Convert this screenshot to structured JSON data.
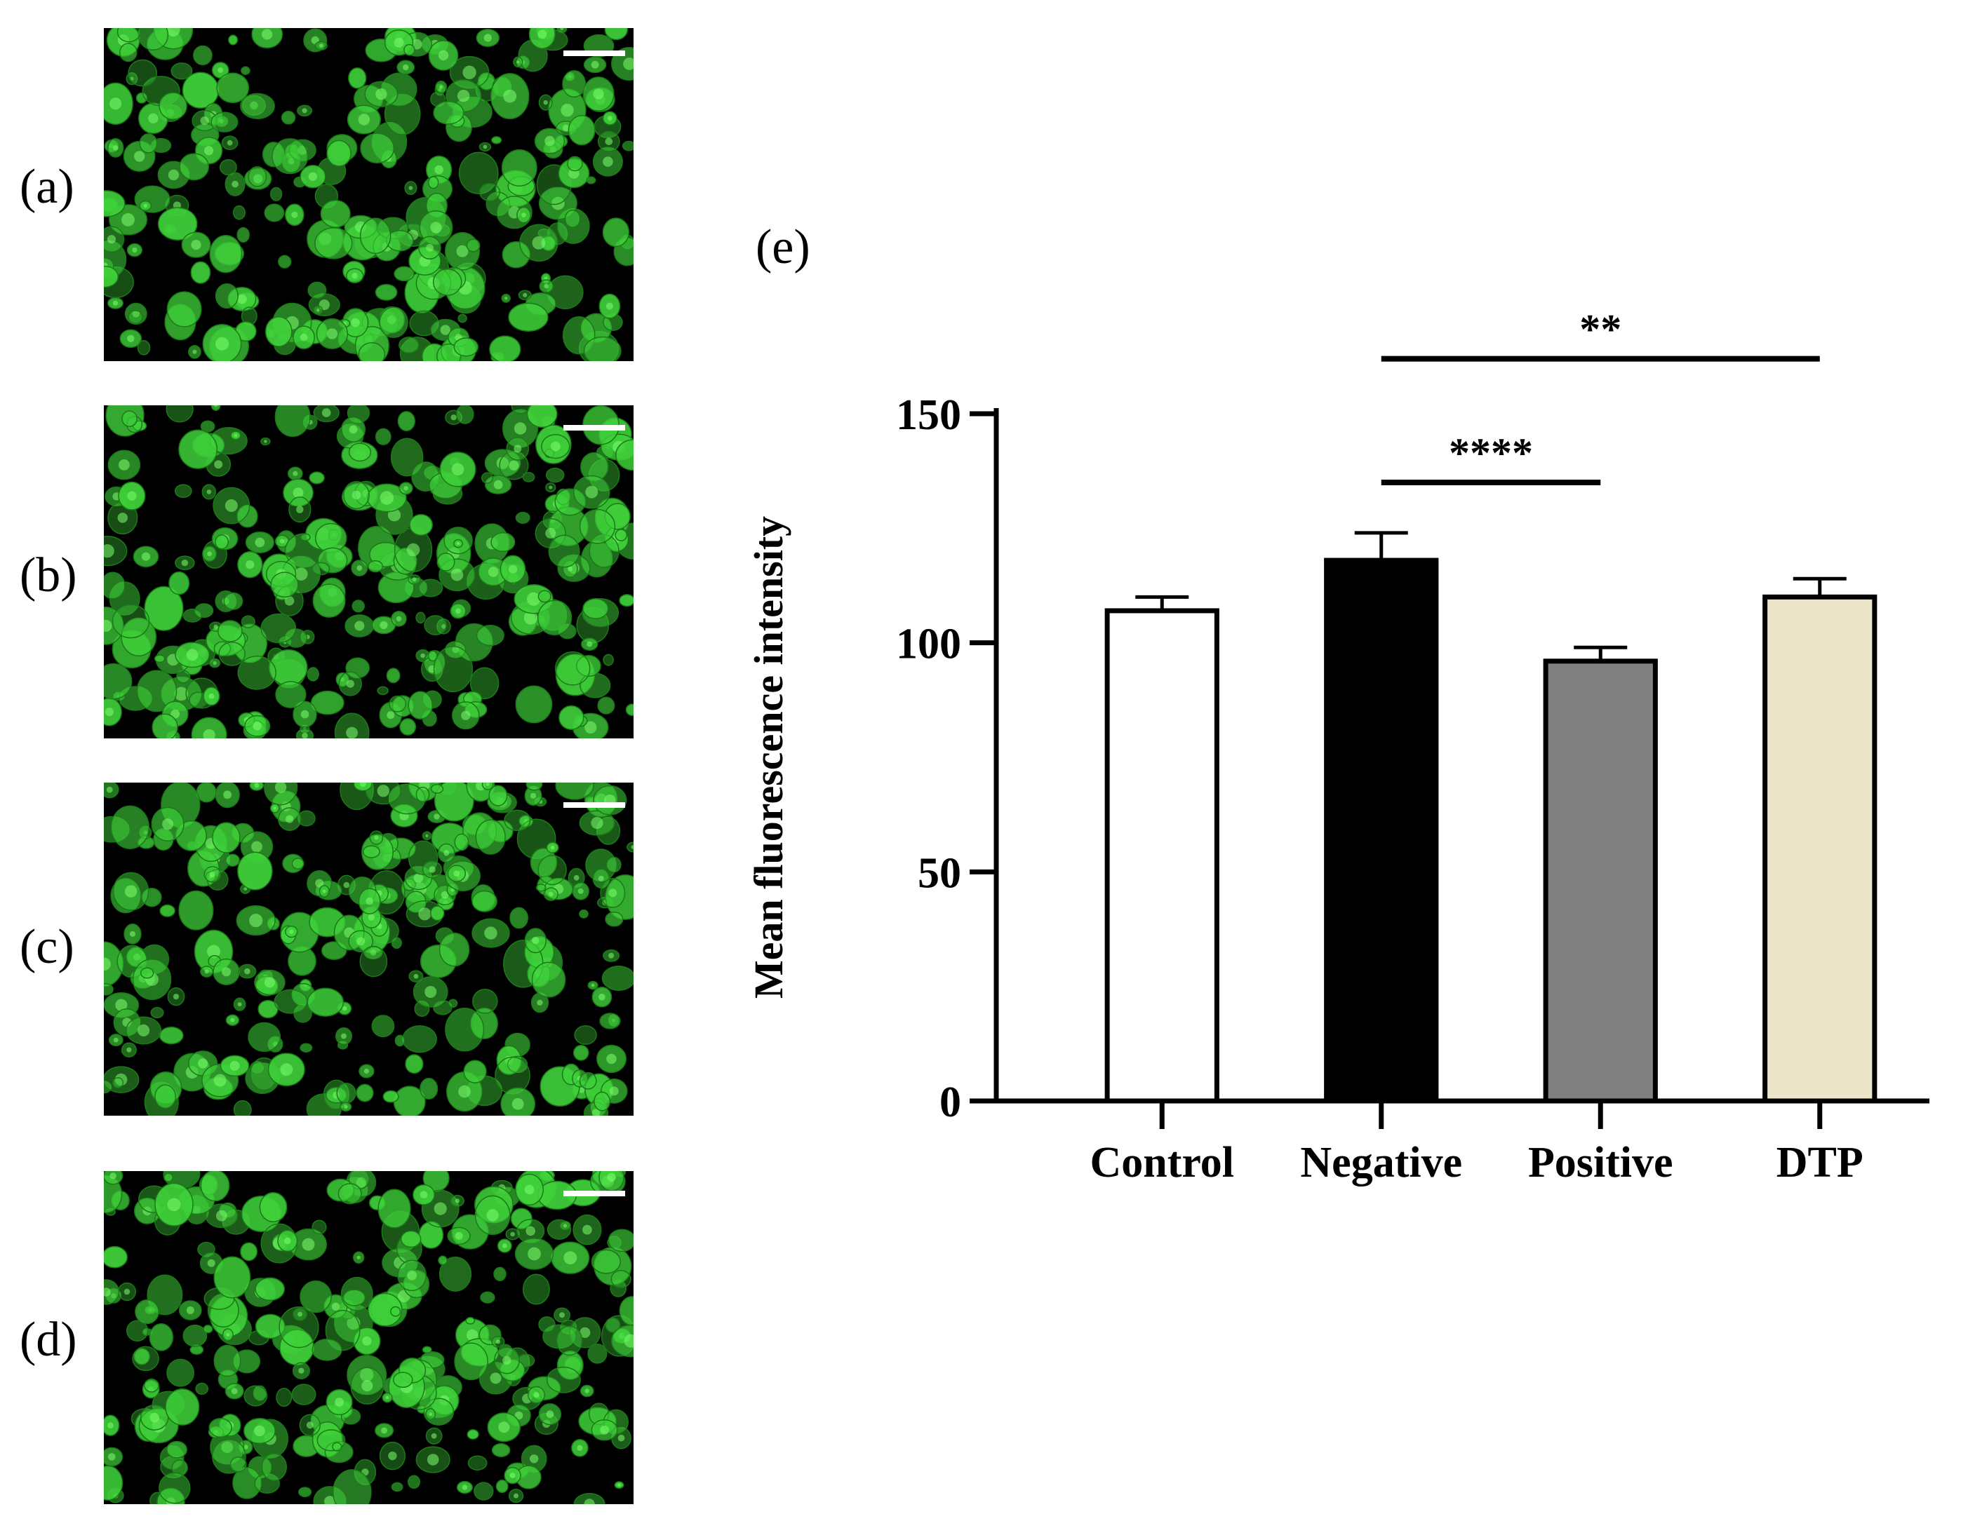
{
  "panels": [
    {
      "label": "(a)"
    },
    {
      "label": "(b)"
    },
    {
      "label": "(c)"
    },
    {
      "label": "(d)"
    }
  ],
  "chart_panel_label": "(e)",
  "colors": {
    "cell_green": "#3fd13a",
    "scale_bar": "#ffffff",
    "control": "#ffffff",
    "negative": "#000000",
    "positive": "#808080",
    "dtp": "#ede5c9"
  },
  "chart_data": {
    "type": "bar",
    "categories": [
      "Control",
      "Negative",
      "Positive",
      "DTP"
    ],
    "values": [
      107,
      118,
      96,
      110
    ],
    "errors": [
      3,
      6,
      3,
      4
    ],
    "ylabel": "Mean fluorescence intensity",
    "xlabel": "",
    "ylim": [
      0,
      150
    ],
    "yticks": [
      0,
      50,
      100,
      150
    ],
    "bar_colors": [
      "#ffffff",
      "#000000",
      "#808080",
      "#ede5c9"
    ],
    "significance": [
      {
        "from": "Negative",
        "to": "Positive",
        "label": "****",
        "y": 135
      },
      {
        "from": "Negative",
        "to": "DTP",
        "label": "**",
        "y": 162
      }
    ],
    "grid": false,
    "legend": "none"
  }
}
